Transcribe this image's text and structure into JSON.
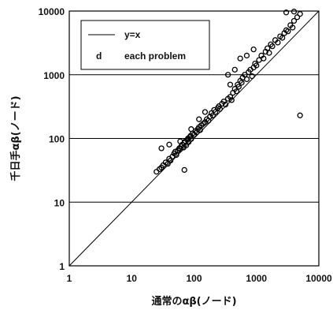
{
  "chart_data": {
    "type": "scatter",
    "title": "",
    "xlabel": "通常のαβ(ノード)",
    "ylabel": "千日手αβ(ノード)",
    "x_scale": "log",
    "y_scale": "log",
    "xlim": [
      1,
      10000
    ],
    "ylim": [
      1,
      10000
    ],
    "x_ticks": [
      "1",
      "10",
      "100",
      "1000",
      "10000"
    ],
    "y_ticks": [
      "1",
      "10",
      "100",
      "1000",
      "10000"
    ],
    "grid": "horizontal",
    "legend_position": "top-left",
    "series": [
      {
        "name": "y=x",
        "kind": "line",
        "x": [
          1,
          10000
        ],
        "y": [
          1,
          10000
        ]
      },
      {
        "name": "each problem",
        "legend_marker": "d",
        "kind": "scatter",
        "marker": "circle-open",
        "points": [
          [
            25,
            30
          ],
          [
            28,
            33
          ],
          [
            30,
            35
          ],
          [
            32,
            38
          ],
          [
            35,
            42
          ],
          [
            38,
            40
          ],
          [
            40,
            48
          ],
          [
            42,
            45
          ],
          [
            45,
            52
          ],
          [
            48,
            58
          ],
          [
            50,
            62
          ],
          [
            52,
            55
          ],
          [
            55,
            65
          ],
          [
            58,
            70
          ],
          [
            60,
            68
          ],
          [
            62,
            75
          ],
          [
            65,
            80
          ],
          [
            68,
            72
          ],
          [
            70,
            85
          ],
          [
            72,
            90
          ],
          [
            75,
            78
          ],
          [
            78,
            95
          ],
          [
            80,
            100
          ],
          [
            82,
            88
          ],
          [
            85,
            105
          ],
          [
            88,
            110
          ],
          [
            90,
            98
          ],
          [
            95,
            120
          ],
          [
            100,
            115
          ],
          [
            105,
            130
          ],
          [
            110,
            125
          ],
          [
            115,
            140
          ],
          [
            120,
            150
          ],
          [
            125,
            135
          ],
          [
            130,
            160
          ],
          [
            140,
            170
          ],
          [
            150,
            180
          ],
          [
            160,
            200
          ],
          [
            170,
            190
          ],
          [
            180,
            220
          ],
          [
            190,
            250
          ],
          [
            200,
            230
          ],
          [
            210,
            280
          ],
          [
            220,
            260
          ],
          [
            240,
            300
          ],
          [
            250,
            320
          ],
          [
            260,
            290
          ],
          [
            280,
            350
          ],
          [
            300,
            380
          ],
          [
            320,
            340
          ],
          [
            350,
            420
          ],
          [
            380,
            450
          ],
          [
            400,
            400
          ],
          [
            420,
            520
          ],
          [
            450,
            600
          ],
          [
            480,
            550
          ],
          [
            500,
            700
          ],
          [
            520,
            650
          ],
          [
            550,
            800
          ],
          [
            580,
            750
          ],
          [
            600,
            900
          ],
          [
            650,
            1000
          ],
          [
            700,
            850
          ],
          [
            750,
            1100
          ],
          [
            800,
            1200
          ],
          [
            850,
            950
          ],
          [
            900,
            1300
          ],
          [
            950,
            1500
          ],
          [
            1000,
            1400
          ],
          [
            1100,
            1700
          ],
          [
            1200,
            2000
          ],
          [
            1300,
            1800
          ],
          [
            1400,
            2300
          ],
          [
            1500,
            2600
          ],
          [
            1600,
            2200
          ],
          [
            1700,
            3000
          ],
          [
            1800,
            2800
          ],
          [
            2000,
            3500
          ],
          [
            2200,
            3200
          ],
          [
            2400,
            4000
          ],
          [
            2600,
            3800
          ],
          [
            2800,
            4500
          ],
          [
            3000,
            5000
          ],
          [
            3200,
            4800
          ],
          [
            3500,
            6000
          ],
          [
            3800,
            5500
          ],
          [
            4000,
            7000
          ],
          [
            4500,
            8000
          ],
          [
            5000,
            9000
          ],
          [
            3000,
            9500
          ],
          [
            4000,
            9800
          ],
          [
            350,
            1000
          ],
          [
            450,
            1200
          ],
          [
            550,
            1800
          ],
          [
            380,
            700
          ],
          [
            30,
            70
          ],
          [
            40,
            80
          ],
          [
            70,
            32
          ],
          [
            60,
            90
          ],
          [
            90,
            140
          ],
          [
            120,
            200
          ],
          [
            150,
            260
          ],
          [
            700,
            2000
          ],
          [
            900,
            2500
          ],
          [
            5000,
            230
          ]
        ]
      }
    ]
  }
}
